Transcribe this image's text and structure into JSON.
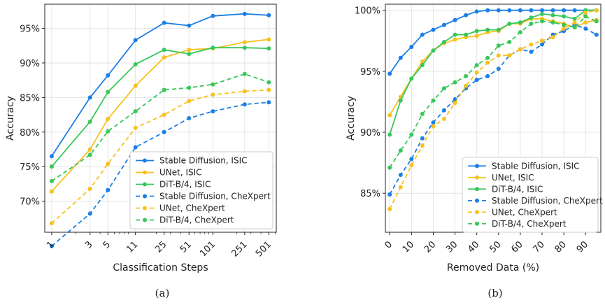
{
  "chart_data": [
    {
      "type": "line",
      "caption": "(a)",
      "xlabel": "Classification Steps",
      "ylabel": "Accuracy",
      "xscale": "log",
      "x": [
        1,
        3,
        5,
        11,
        25,
        51,
        101,
        251,
        501
      ],
      "xtick_labels": [
        "1",
        "3",
        "5",
        "11",
        "25",
        "51",
        "101",
        "251",
        "501"
      ],
      "ylim": [
        65.5,
        98.5
      ],
      "yticks": [
        70,
        75,
        80,
        85,
        90,
        95
      ],
      "ytick_labels": [
        "70%",
        "75%",
        "80%",
        "85%",
        "90%",
        "95%"
      ],
      "grid": true,
      "legend_position": "lower-right",
      "series": [
        {
          "name": "Stable Diffusion, ISIC",
          "color": "#1a7fe6",
          "dashed": false,
          "values": [
            76.5,
            85.0,
            88.2,
            93.3,
            95.8,
            95.4,
            96.8,
            97.1,
            96.9
          ]
        },
        {
          "name": "UNet, ISIC",
          "color": "#f8c11e",
          "dashed": false,
          "values": [
            71.4,
            77.5,
            81.9,
            86.7,
            90.8,
            91.9,
            92.1,
            93.0,
            93.4
          ]
        },
        {
          "name": "DiT-B/4, ISIC",
          "color": "#38c75b",
          "dashed": false,
          "values": [
            75.0,
            81.5,
            85.8,
            89.8,
            91.9,
            91.3,
            92.2,
            92.2,
            92.1
          ]
        },
        {
          "name": "Stable Diffusion, CheXpert",
          "color": "#1a7fe6",
          "dashed": true,
          "values": [
            63.5,
            68.2,
            71.6,
            77.8,
            80.0,
            82.0,
            83.0,
            84.0,
            84.3
          ]
        },
        {
          "name": "UNet, CheXpert",
          "color": "#f8c11e",
          "dashed": true,
          "values": [
            66.8,
            71.8,
            75.4,
            80.6,
            82.5,
            84.5,
            85.4,
            85.9,
            86.1
          ]
        },
        {
          "name": "DiT-B/4, CheXpert",
          "color": "#38c75b",
          "dashed": true,
          "values": [
            72.9,
            76.7,
            80.1,
            83.0,
            86.1,
            86.4,
            86.9,
            88.4,
            87.2
          ]
        }
      ]
    },
    {
      "type": "line",
      "caption": "(b)",
      "xlabel": "Removed Data (%)",
      "ylabel": "Accuracy",
      "xlim": [
        -2,
        97
      ],
      "xticks": [
        0,
        10,
        20,
        30,
        40,
        50,
        60,
        70,
        80,
        90
      ],
      "xtick_labels": [
        "0",
        "10",
        "20",
        "30",
        "40",
        "50",
        "60",
        "70",
        "80",
        "90"
      ],
      "ylim": [
        81.8,
        100.5
      ],
      "yticks": [
        85,
        90,
        95,
        100
      ],
      "ytick_labels": [
        "85%",
        "90%",
        "95%",
        "100%"
      ],
      "grid": true,
      "legend_position": "lower-right",
      "x": [
        0,
        5,
        10,
        15,
        20,
        25,
        30,
        35,
        40,
        45,
        50,
        55,
        60,
        65,
        70,
        75,
        80,
        85,
        90,
        95
      ],
      "series": [
        {
          "name": "Stable Diffusion, ISIC",
          "color": "#1a7fe6",
          "dashed": false,
          "values": [
            94.8,
            96.1,
            97.0,
            98.0,
            98.4,
            98.8,
            99.2,
            99.6,
            99.9,
            100.0,
            100.0,
            100.0,
            100.0,
            100.0,
            100.0,
            100.0,
            100.0,
            100.0,
            100.0,
            100.0
          ]
        },
        {
          "name": "UNet, ISIC",
          "color": "#f8c11e",
          "dashed": false,
          "values": [
            91.4,
            92.9,
            94.4,
            95.8,
            96.7,
            97.3,
            97.6,
            97.8,
            97.9,
            98.2,
            98.3,
            98.9,
            98.9,
            99.3,
            99.3,
            99.1,
            98.9,
            98.6,
            99.0,
            99.2
          ]
        },
        {
          "name": "DiT-B/4, ISIC",
          "color": "#38c75b",
          "dashed": false,
          "values": [
            89.8,
            92.6,
            94.4,
            95.5,
            96.7,
            97.4,
            98.0,
            98.0,
            98.3,
            98.4,
            98.4,
            98.9,
            99.0,
            99.4,
            99.7,
            99.6,
            99.5,
            99.3,
            100.0,
            100.0
          ]
        },
        {
          "name": "Stable Diffusion, CheXpert",
          "color": "#1a7fe6",
          "dashed": true,
          "values": [
            84.9,
            86.5,
            87.8,
            89.5,
            90.8,
            91.8,
            92.7,
            93.6,
            94.3,
            94.6,
            95.2,
            96.3,
            96.8,
            96.6,
            97.2,
            98.0,
            98.3,
            98.8,
            98.5,
            98.0
          ]
        },
        {
          "name": "UNet, CheXpert",
          "color": "#f8c11e",
          "dashed": true,
          "values": [
            83.7,
            85.5,
            87.3,
            88.9,
            90.5,
            91.1,
            92.4,
            93.8,
            94.9,
            95.7,
            96.3,
            96.3,
            96.8,
            97.2,
            97.5,
            97.8,
            98.5,
            99.0,
            99.8,
            100.0
          ]
        },
        {
          "name": "DiT-B/4, CheXpert",
          "color": "#38c75b",
          "dashed": true,
          "values": [
            87.1,
            88.5,
            89.8,
            91.5,
            92.6,
            93.6,
            94.1,
            94.6,
            95.5,
            96.1,
            97.1,
            97.4,
            98.2,
            98.9,
            99.1,
            99.0,
            98.8,
            98.6,
            99.5,
            99.1
          ]
        }
      ]
    }
  ]
}
